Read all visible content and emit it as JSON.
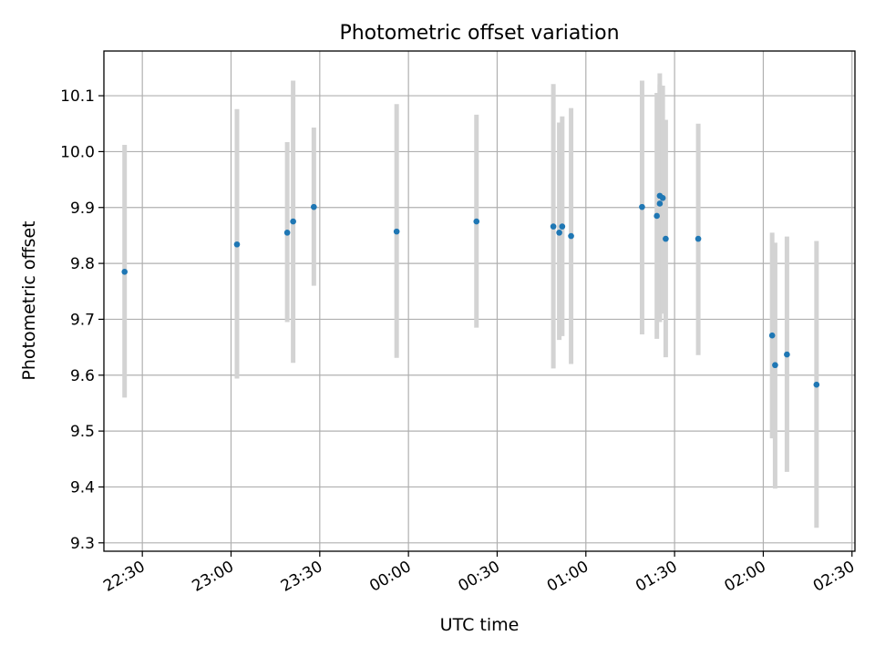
{
  "chart_data": {
    "type": "scatter",
    "title": "Photometric offset variation",
    "xlabel": "UTC time",
    "ylabel": "Photometric offset",
    "x_axis_kind": "time",
    "xlim": [
      "22:17",
      "02:31"
    ],
    "ylim": [
      9.285,
      10.18
    ],
    "grid": true,
    "legend": null,
    "x_ticks": [
      "22:30",
      "23:00",
      "23:30",
      "00:00",
      "00:30",
      "01:00",
      "01:30",
      "02:00",
      "02:30"
    ],
    "y_ticks": [
      "9.3",
      "9.4",
      "9.5",
      "9.6",
      "9.7",
      "9.8",
      "9.9",
      "10.0",
      "10.1"
    ],
    "colors": {
      "point": "#1f77b4",
      "errorbar": "#d3d3d3",
      "grid": "#b0b0b0"
    },
    "points": [
      {
        "time": "22:24",
        "y": 9.785,
        "lo": 9.56,
        "hi": 10.012
      },
      {
        "time": "23:02",
        "y": 9.834,
        "lo": 9.594,
        "hi": 10.076
      },
      {
        "time": "23:19",
        "y": 9.855,
        "lo": 9.695,
        "hi": 10.017
      },
      {
        "time": "23:21",
        "y": 9.875,
        "lo": 9.622,
        "hi": 10.127
      },
      {
        "time": "23:28",
        "y": 9.901,
        "lo": 9.76,
        "hi": 10.043
      },
      {
        "time": "23:56",
        "y": 9.857,
        "lo": 9.631,
        "hi": 10.085
      },
      {
        "time": "00:23",
        "y": 9.875,
        "lo": 9.685,
        "hi": 10.066
      },
      {
        "time": "00:49",
        "y": 9.866,
        "lo": 9.612,
        "hi": 10.121
      },
      {
        "time": "00:51",
        "y": 9.855,
        "lo": 9.663,
        "hi": 10.052
      },
      {
        "time": "00:52",
        "y": 9.866,
        "lo": 9.67,
        "hi": 10.063
      },
      {
        "time": "00:55",
        "y": 9.849,
        "lo": 9.62,
        "hi": 10.078
      },
      {
        "time": "01:19",
        "y": 9.901,
        "lo": 9.673,
        "hi": 10.127
      },
      {
        "time": "01:24",
        "y": 9.885,
        "lo": 9.665,
        "hi": 10.105
      },
      {
        "time": "01:25",
        "y": 9.907,
        "lo": 9.695,
        "hi": 10.12
      },
      {
        "time": "01:25",
        "y": 9.921,
        "lo": 9.702,
        "hi": 10.14
      },
      {
        "time": "01:26",
        "y": 9.917,
        "lo": 9.71,
        "hi": 10.118
      },
      {
        "time": "01:27",
        "y": 9.844,
        "lo": 9.632,
        "hi": 10.057
      },
      {
        "time": "01:38",
        "y": 9.844,
        "lo": 9.636,
        "hi": 10.05
      },
      {
        "time": "02:03",
        "y": 9.671,
        "lo": 9.487,
        "hi": 9.855
      },
      {
        "time": "02:04",
        "y": 9.618,
        "lo": 9.397,
        "hi": 9.837
      },
      {
        "time": "02:08",
        "y": 9.637,
        "lo": 9.427,
        "hi": 9.848
      },
      {
        "time": "02:18",
        "y": 9.583,
        "lo": 9.327,
        "hi": 9.84
      }
    ]
  }
}
